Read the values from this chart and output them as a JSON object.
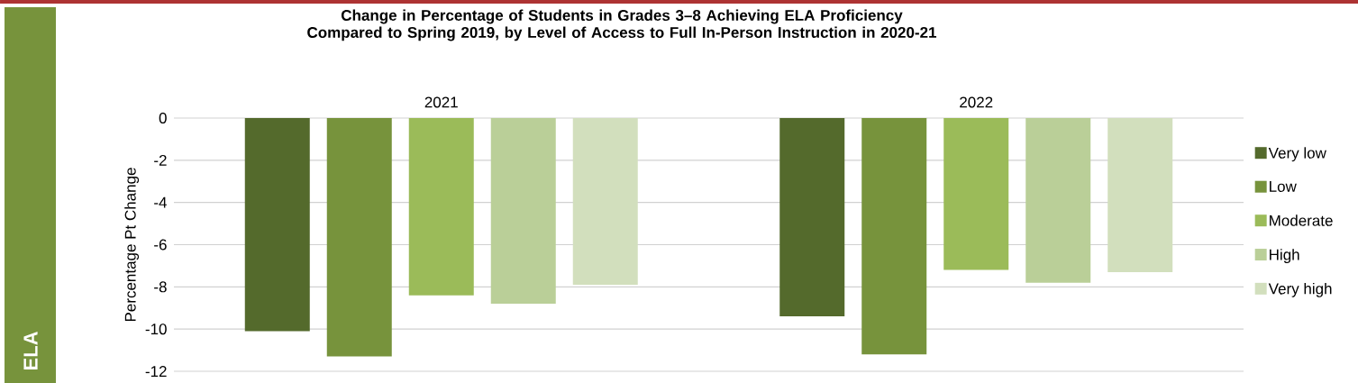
{
  "chart_data": {
    "type": "bar",
    "title": "Change in Percentage of Students in Grades 3–8 Achieving ELA Proficiency Compared to Spring 2019, by Level of Access to Full In-Person Instruction in 2020-21",
    "ylabel": "Percentage Pt Change",
    "categories": [
      "2021",
      "2022"
    ],
    "series": [
      {
        "name": "Very low",
        "color": "#546a2c",
        "values": [
          -10.1,
          -9.4
        ]
      },
      {
        "name": "Low",
        "color": "#77933c",
        "values": [
          -11.3,
          -11.2
        ]
      },
      {
        "name": "Moderate",
        "color": "#9bbb59",
        "values": [
          -8.4,
          -7.2
        ]
      },
      {
        "name": "High",
        "color": "#bacf98",
        "values": [
          -8.8,
          -7.8
        ]
      },
      {
        "name": "Very high",
        "color": "#d2dfbd",
        "values": [
          -7.9,
          -7.3
        ]
      }
    ],
    "ylim": [
      -12,
      0
    ],
    "yticks": [
      0,
      -2,
      -4,
      -6,
      -8,
      -10,
      -12
    ],
    "grid": "y",
    "legend": "right",
    "annotations": [
      "ELA"
    ]
  }
}
